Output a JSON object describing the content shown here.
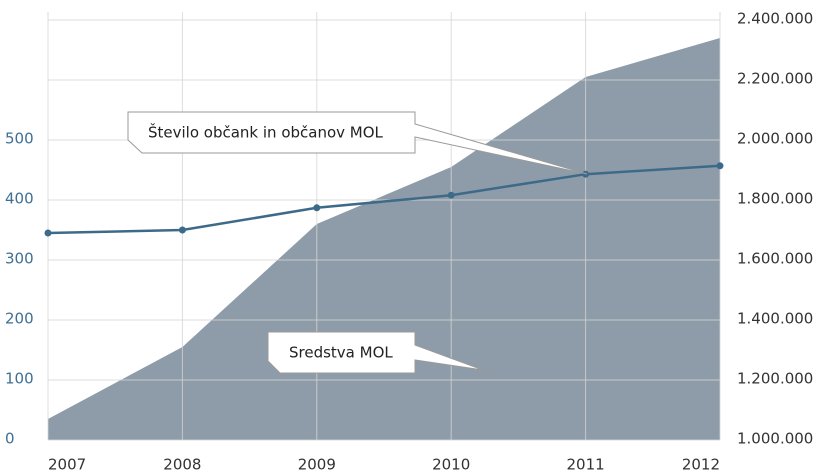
{
  "chart_data": {
    "type": "line-area",
    "categories": [
      "2007",
      "2008",
      "2009",
      "2010",
      "2011",
      "2012"
    ],
    "series": [
      {
        "name": "Sredstva MOL",
        "type": "area",
        "axis": "y2",
        "color": "#8e9ca9",
        "values": [
          1070000,
          1310000,
          1720000,
          1910000,
          2210000,
          2340000
        ]
      },
      {
        "name": "Število občank in občanov MOL",
        "type": "line",
        "axis": "y",
        "color": "#3e6a8a",
        "values": [
          345,
          350,
          387,
          408,
          443,
          457
        ]
      }
    ],
    "ylim": [
      0,
      700
    ],
    "yticks": [
      0,
      100,
      200,
      300,
      400,
      500
    ],
    "y2lim": [
      1000000,
      2400000
    ],
    "y2ticks": [
      {
        "value": 1000000,
        "label": "1.000.000"
      },
      {
        "value": 1200000,
        "label": "1.200.000"
      },
      {
        "value": 1400000,
        "label": "1.400.000"
      },
      {
        "value": 1600000,
        "label": "1.600.000"
      },
      {
        "value": 1800000,
        "label": "1.800.000"
      },
      {
        "value": 2000000,
        "label": "2.000.000"
      },
      {
        "value": 2200000,
        "label": "2.200.000"
      },
      {
        "value": 2400000,
        "label": "2.400.000"
      }
    ],
    "grid": true
  }
}
